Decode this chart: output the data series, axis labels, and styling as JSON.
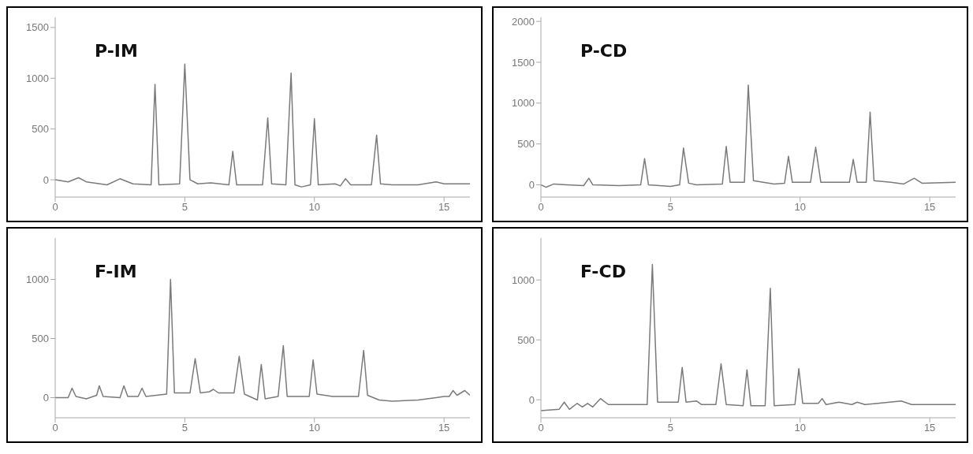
{
  "chart_data": [
    {
      "type": "line",
      "title": "P-IM",
      "xlim": [
        0,
        16
      ],
      "xticks": [
        0,
        5,
        10,
        15
      ],
      "ylim": [
        -170,
        1600
      ],
      "yticks": [
        0,
        500,
        1000,
        1500
      ],
      "grid": false,
      "legend": false,
      "marker": "none",
      "line_style": "solid",
      "x": [
        0,
        0.5,
        0.9,
        1.2,
        2,
        2.5,
        3,
        3.7,
        3.85,
        4.0,
        4.8,
        5.0,
        5.2,
        5.5,
        6,
        6.7,
        6.85,
        7.0,
        8.0,
        8.2,
        8.35,
        8.9,
        9.1,
        9.25,
        9.5,
        9.85,
        10.0,
        10.15,
        10.8,
        11.0,
        11.2,
        11.4,
        12.2,
        12.4,
        12.55,
        13,
        14,
        14.7,
        15,
        16
      ],
      "series": [
        {
          "color": "#7a7a7a",
          "values": [
            0,
            -20,
            20,
            -20,
            -50,
            10,
            -40,
            -50,
            940,
            -50,
            -40,
            1140,
            0,
            -40,
            -30,
            -50,
            280,
            -50,
            -50,
            610,
            -40,
            -50,
            1050,
            -50,
            -70,
            -50,
            600,
            -50,
            -40,
            -60,
            10,
            -50,
            -50,
            440,
            -40,
            -50,
            -50,
            -20,
            -40,
            -40
          ]
        }
      ]
    },
    {
      "type": "line",
      "title": "P-CD",
      "xlim": [
        0,
        16
      ],
      "xticks": [
        0,
        5,
        10,
        15
      ],
      "ylim": [
        -150,
        2050
      ],
      "yticks": [
        0,
        500,
        1000,
        1500,
        2000
      ],
      "grid": false,
      "legend": false,
      "marker": "none",
      "line_style": "solid",
      "x": [
        0,
        0.2,
        0.5,
        1,
        1.65,
        1.85,
        2.0,
        3,
        3.85,
        4.0,
        4.15,
        5,
        5.35,
        5.5,
        5.7,
        6,
        7,
        7.15,
        7.3,
        7.85,
        8.0,
        8.2,
        9,
        9.4,
        9.55,
        9.7,
        10.4,
        10.6,
        10.8,
        11.9,
        12.05,
        12.2,
        12.55,
        12.7,
        12.85,
        13.5,
        14,
        14.4,
        14.7,
        16
      ],
      "series": [
        {
          "color": "#7a7a7a",
          "values": [
            0,
            -30,
            10,
            0,
            -10,
            80,
            0,
            -10,
            0,
            320,
            0,
            -20,
            0,
            450,
            20,
            0,
            10,
            470,
            30,
            30,
            1220,
            50,
            10,
            20,
            350,
            30,
            30,
            460,
            30,
            30,
            310,
            30,
            30,
            890,
            50,
            30,
            10,
            80,
            20,
            30
          ]
        }
      ]
    },
    {
      "type": "line",
      "title": "F-IM",
      "xlim": [
        0,
        16
      ],
      "xticks": [
        0,
        5,
        10,
        15
      ],
      "ylim": [
        -170,
        1350
      ],
      "yticks": [
        0,
        500,
        1000
      ],
      "grid": false,
      "legend": false,
      "marker": "none",
      "line_style": "solid",
      "x": [
        0,
        0.5,
        0.65,
        0.8,
        1.2,
        1.6,
        1.7,
        1.85,
        2.5,
        2.65,
        2.8,
        3.2,
        3.35,
        3.5,
        4.3,
        4.45,
        4.6,
        5.2,
        5.4,
        5.6,
        5.95,
        6.1,
        6.3,
        6.9,
        7.1,
        7.3,
        7.8,
        7.95,
        8.1,
        8.6,
        8.8,
        8.95,
        9.8,
        9.95,
        10.1,
        10.7,
        11.7,
        11.9,
        12.05,
        12.5,
        13,
        14,
        14.7,
        15,
        15.2,
        15.35,
        15.5,
        15.8,
        16
      ],
      "series": [
        {
          "color": "#7a7a7a",
          "values": [
            0,
            0,
            80,
            10,
            -10,
            20,
            100,
            10,
            0,
            100,
            10,
            10,
            80,
            10,
            30,
            1000,
            40,
            40,
            330,
            40,
            50,
            70,
            40,
            40,
            350,
            30,
            -20,
            280,
            -10,
            10,
            440,
            10,
            10,
            320,
            30,
            10,
            10,
            400,
            20,
            -20,
            -30,
            -20,
            0,
            10,
            10,
            60,
            20,
            60,
            20
          ]
        }
      ]
    },
    {
      "type": "line",
      "title": "F-CD",
      "xlim": [
        0,
        16
      ],
      "xticks": [
        0,
        5,
        10,
        15
      ],
      "ylim": [
        -150,
        1350
      ],
      "yticks": [
        0,
        500,
        1000
      ],
      "grid": false,
      "legend": false,
      "marker": "none",
      "line_style": "solid",
      "x": [
        0,
        0.7,
        0.9,
        1.1,
        1.4,
        1.6,
        1.8,
        2.0,
        2.3,
        2.6,
        3.5,
        4.1,
        4.3,
        4.5,
        5.0,
        5.3,
        5.45,
        5.6,
        6.0,
        6.2,
        6.75,
        6.95,
        7.15,
        7.8,
        7.95,
        8.1,
        8.65,
        8.85,
        9.0,
        9.8,
        9.95,
        10.1,
        10.7,
        10.85,
        11,
        11.5,
        12,
        12.2,
        12.5,
        13,
        13.9,
        14.3,
        16
      ],
      "series": [
        {
          "color": "#7a7a7a",
          "values": [
            -90,
            -80,
            -20,
            -80,
            -30,
            -60,
            -30,
            -60,
            10,
            -40,
            -40,
            -40,
            1130,
            -20,
            -20,
            -20,
            270,
            -20,
            -10,
            -40,
            -40,
            300,
            -40,
            -50,
            250,
            -50,
            -50,
            930,
            -50,
            -40,
            260,
            -30,
            -30,
            10,
            -40,
            -20,
            -40,
            -20,
            -40,
            -30,
            -10,
            -40,
            -40
          ]
        }
      ]
    }
  ]
}
